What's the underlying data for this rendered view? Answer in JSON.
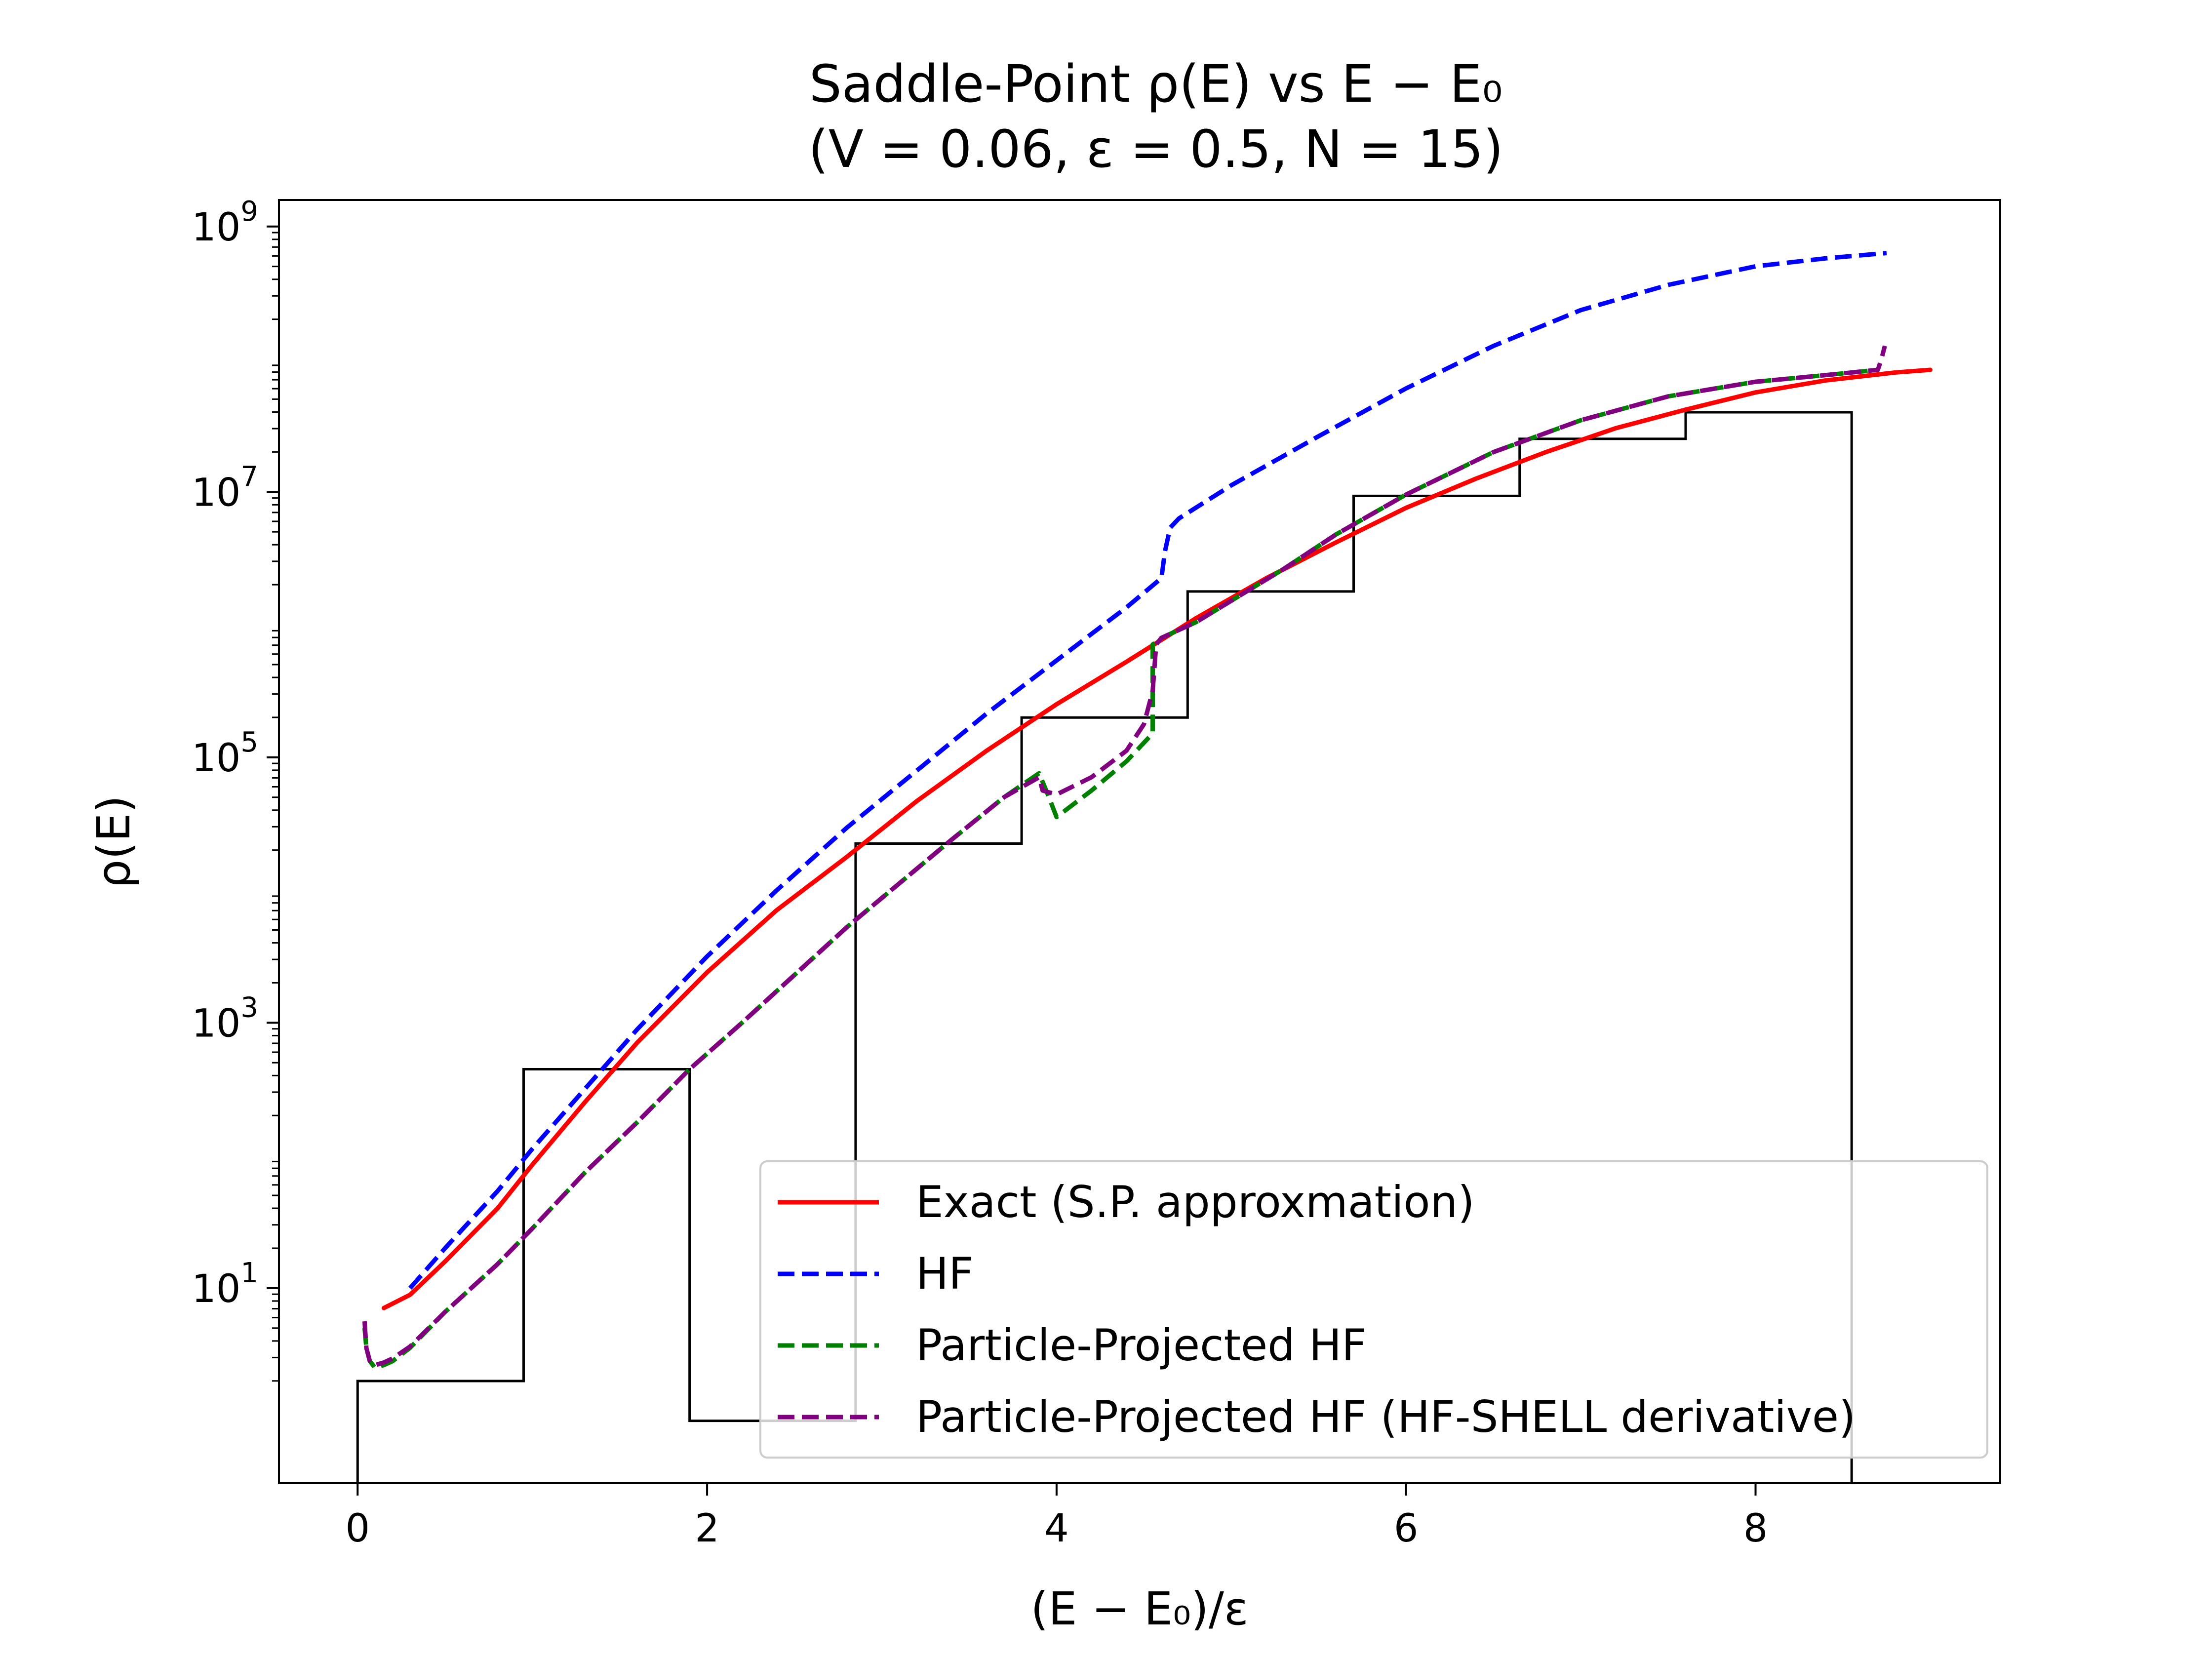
{
  "chart_data": {
    "type": "line",
    "title_line1": "Saddle-Point ρ(E) vs E − E₀",
    "title_line2": "(V = 0.06, ε = 0.5, N = 15)",
    "xlabel": "(E − E₀)/ε",
    "ylabel": "ρ(E)",
    "xlim": [
      -0.45,
      9.4
    ],
    "ylim_log10": [
      -0.47,
      9.2
    ],
    "yscale": "log",
    "x_ticks": [
      0,
      2,
      4,
      6,
      8
    ],
    "x_tick_labels": [
      "0",
      "2",
      "4",
      "6",
      "8"
    ],
    "y_ticks_log10": [
      1,
      3,
      5,
      7,
      9
    ],
    "y_tick_bases": [
      "10",
      "10",
      "10",
      "10",
      "10"
    ],
    "y_tick_exps": [
      "1",
      "3",
      "5",
      "7",
      "9"
    ],
    "legend_position": "lower-right",
    "grid": false,
    "histogram": {
      "color": "#000000",
      "edges": [
        0,
        0.95,
        1.9,
        2.85,
        3.8,
        4.75,
        5.7,
        6.65,
        7.6,
        8.55
      ],
      "log10_values": [
        0.3,
        2.65,
        0.0,
        4.35,
        5.3,
        6.25,
        6.97,
        7.4,
        7.6
      ]
    },
    "series": [
      {
        "name": "Exact (S.P. approxmation)",
        "color": "#ff0000",
        "style": "solid",
        "x": [
          0.15,
          0.3,
          0.5,
          0.8,
          1.0,
          1.3,
          1.6,
          2.0,
          2.4,
          2.8,
          3.2,
          3.6,
          4.0,
          4.4,
          4.8,
          5.2,
          5.6,
          6.0,
          6.4,
          6.8,
          7.2,
          7.6,
          8.0,
          8.4,
          8.8,
          9.0
        ],
        "log10_y": [
          0.85,
          0.95,
          1.2,
          1.6,
          1.93,
          2.4,
          2.85,
          3.38,
          3.85,
          4.25,
          4.67,
          5.05,
          5.4,
          5.72,
          6.05,
          6.35,
          6.62,
          6.88,
          7.1,
          7.3,
          7.48,
          7.62,
          7.75,
          7.84,
          7.9,
          7.92
        ]
      },
      {
        "name": "HF",
        "color": "#0000ff",
        "style": "dashed",
        "x": [
          0.3,
          0.5,
          0.8,
          1.0,
          1.3,
          1.6,
          2.0,
          2.4,
          2.8,
          3.2,
          3.6,
          4.0,
          4.4,
          4.6,
          4.62,
          4.65,
          4.7,
          5.0,
          5.5,
          6.0,
          6.5,
          7.0,
          7.5,
          8.0,
          8.4,
          8.75
        ],
        "log10_y": [
          1.0,
          1.3,
          1.73,
          2.05,
          2.5,
          2.95,
          3.5,
          4.0,
          4.47,
          4.9,
          5.33,
          5.73,
          6.13,
          6.35,
          6.55,
          6.73,
          6.8,
          7.05,
          7.42,
          7.78,
          8.1,
          8.37,
          8.56,
          8.7,
          8.76,
          8.8
        ]
      },
      {
        "name": "Particle-Projected HF",
        "color": "#008000",
        "style": "dashed",
        "x": [
          0.04,
          0.05,
          0.07,
          0.1,
          0.15,
          0.2,
          0.3,
          0.5,
          0.8,
          1.0,
          1.3,
          1.6,
          1.9,
          2.2,
          2.5,
          2.8,
          3.1,
          3.4,
          3.7,
          3.9,
          3.95,
          4.0,
          4.2,
          4.4,
          4.55,
          4.55,
          4.6,
          4.8,
          5.0,
          5.3,
          5.6,
          6.0,
          6.5,
          7.0,
          7.5,
          8.0,
          8.4,
          8.7
        ],
        "log10_y": [
          0.7,
          0.55,
          0.45,
          0.4,
          0.42,
          0.45,
          0.55,
          0.82,
          1.18,
          1.45,
          1.87,
          2.25,
          2.65,
          3.0,
          3.36,
          3.72,
          4.05,
          4.38,
          4.7,
          4.88,
          4.72,
          4.55,
          4.75,
          4.97,
          5.18,
          5.85,
          5.9,
          6.02,
          6.18,
          6.42,
          6.68,
          6.98,
          7.3,
          7.54,
          7.72,
          7.83,
          7.88,
          7.92
        ]
      },
      {
        "name": "Particle-Projected HF (HF-SHELL derivative)",
        "color": "#800080",
        "style": "dashed",
        "x": [
          0.04,
          0.05,
          0.07,
          0.1,
          0.15,
          0.2,
          0.3,
          0.5,
          0.8,
          1.0,
          1.3,
          1.6,
          1.9,
          2.2,
          2.5,
          2.8,
          3.1,
          3.4,
          3.7,
          3.9,
          3.92,
          4.0,
          4.2,
          4.4,
          4.5,
          4.55,
          4.57,
          4.6,
          4.8,
          5.0,
          5.3,
          5.6,
          6.0,
          6.5,
          7.0,
          7.5,
          8.0,
          8.4,
          8.7,
          8.72,
          8.74
        ],
        "log10_y": [
          0.75,
          0.55,
          0.45,
          0.42,
          0.44,
          0.47,
          0.56,
          0.82,
          1.18,
          1.45,
          1.87,
          2.25,
          2.65,
          3.0,
          3.36,
          3.72,
          4.05,
          4.38,
          4.7,
          4.85,
          4.75,
          4.72,
          4.85,
          5.05,
          5.25,
          5.5,
          5.85,
          5.9,
          6.02,
          6.18,
          6.42,
          6.68,
          6.98,
          7.3,
          7.54,
          7.72,
          7.83,
          7.88,
          7.92,
          8.0,
          8.1
        ]
      }
    ]
  }
}
